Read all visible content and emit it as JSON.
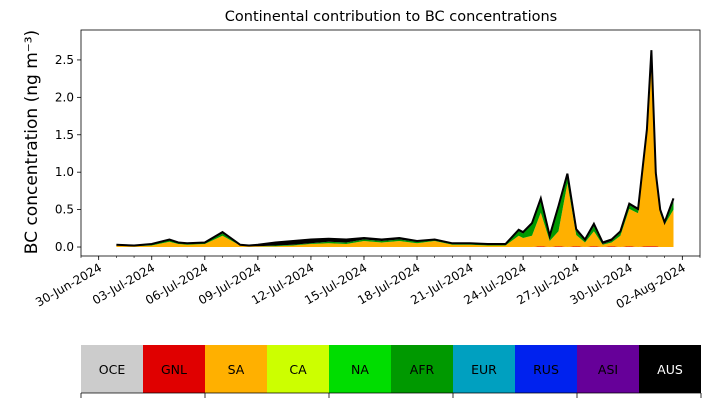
{
  "chart_data": {
    "type": "area",
    "title": "Continental contribution to BC concentrations",
    "xlabel": "",
    "ylabel": "BC concentration (ng m⁻³)",
    "x_axis": {
      "type": "date",
      "range": [
        "2024-06-29",
        "2024-08-03"
      ],
      "tick_labels": [
        "30-Jun-2024",
        "03-Jul-2024",
        "06-Jul-2024",
        "09-Jul-2024",
        "12-Jul-2024",
        "15-Jul-2024",
        "18-Jul-2024",
        "21-Jul-2024",
        "24-Jul-2024",
        "27-Jul-2024",
        "30-Jul-2024",
        "02-Aug-2024"
      ],
      "tick_dates": [
        "2024-06-30",
        "2024-07-03",
        "2024-07-06",
        "2024-07-09",
        "2024-07-12",
        "2024-07-15",
        "2024-07-18",
        "2024-07-21",
        "2024-07-24",
        "2024-07-27",
        "2024-07-30",
        "2024-08-02"
      ]
    },
    "y_axis": {
      "range": [
        -0.12,
        2.9
      ],
      "tick_values": [
        0.0,
        0.5,
        1.0,
        1.5,
        2.0,
        2.5
      ],
      "tick_labels": [
        "0.0",
        "0.5",
        "1.0",
        "1.5",
        "2.0",
        "2.5"
      ]
    },
    "grid": false,
    "legend_placement": "bottom",
    "x": [
      "2024-07-01",
      "2024-07-02",
      "2024-07-03",
      "2024-07-04",
      "2024-07-04T12:00",
      "2024-07-05",
      "2024-07-06",
      "2024-07-07",
      "2024-07-08",
      "2024-07-08T12:00",
      "2024-07-09",
      "2024-07-10",
      "2024-07-11",
      "2024-07-12",
      "2024-07-13",
      "2024-07-14",
      "2024-07-15",
      "2024-07-16",
      "2024-07-17",
      "2024-07-18",
      "2024-07-19",
      "2024-07-20",
      "2024-07-21",
      "2024-07-22",
      "2024-07-23",
      "2024-07-23T18:00",
      "2024-07-24",
      "2024-07-24T12:00",
      "2024-07-25",
      "2024-07-25T12:00",
      "2024-07-26",
      "2024-07-26T12:00",
      "2024-07-27",
      "2024-07-27T12:00",
      "2024-07-28",
      "2024-07-28T12:00",
      "2024-07-29",
      "2024-07-29T12:00",
      "2024-07-30",
      "2024-07-30T12:00",
      "2024-07-31",
      "2024-07-31T06:00",
      "2024-07-31T12:00",
      "2024-07-31T18:00",
      "2024-08-01",
      "2024-08-01T12:00"
    ],
    "series": [
      {
        "name": "OCE",
        "values": [
          0,
          0,
          0,
          0,
          0,
          0,
          0,
          0,
          0,
          0,
          0,
          0,
          0,
          0,
          0,
          0,
          0,
          0,
          0,
          0,
          0,
          0,
          0,
          0,
          0,
          0,
          0,
          0,
          0,
          0,
          0,
          0,
          0,
          0,
          0,
          0,
          0,
          0,
          0,
          0,
          0,
          0,
          0,
          0,
          0,
          0
        ]
      },
      {
        "name": "GNL",
        "values": [
          0,
          0,
          0,
          0,
          0,
          0,
          0,
          0,
          0,
          0,
          0,
          0,
          0,
          0,
          0,
          0,
          0,
          0,
          0,
          0,
          0,
          0,
          0,
          0,
          0,
          0,
          0,
          0,
          0.01,
          0,
          0.01,
          0,
          0.01,
          0,
          0.01,
          0,
          0.01,
          0,
          0.01,
          0,
          0.01,
          0.01,
          0.01,
          0,
          0,
          0
        ]
      },
      {
        "name": "SA",
        "values": [
          0.02,
          0.01,
          0.02,
          0.07,
          0.04,
          0.03,
          0.04,
          0.15,
          0.02,
          0.01,
          0.01,
          0.01,
          0.02,
          0.04,
          0.05,
          0.04,
          0.08,
          0.06,
          0.08,
          0.05,
          0.08,
          0.03,
          0.03,
          0.02,
          0.02,
          0.15,
          0.12,
          0.15,
          0.45,
          0.08,
          0.2,
          0.85,
          0.15,
          0.06,
          0.2,
          0.03,
          0.05,
          0.15,
          0.5,
          0.45,
          1.5,
          2.5,
          0.9,
          0.45,
          0.3,
          0.5
        ]
      },
      {
        "name": "CA",
        "values": [
          0,
          0,
          0,
          0,
          0,
          0,
          0,
          0,
          0,
          0,
          0,
          0,
          0,
          0,
          0,
          0,
          0,
          0,
          0,
          0,
          0,
          0,
          0,
          0,
          0,
          0,
          0,
          0,
          0,
          0,
          0,
          0,
          0,
          0,
          0,
          0,
          0,
          0,
          0,
          0,
          0,
          0,
          0,
          0,
          0,
          0
        ]
      },
      {
        "name": "NA",
        "values": [
          0,
          0,
          0,
          0,
          0,
          0,
          0,
          0,
          0,
          0,
          0,
          0,
          0,
          0,
          0,
          0,
          0,
          0,
          0,
          0,
          0,
          0,
          0,
          0,
          0,
          0,
          0,
          0,
          0,
          0,
          0,
          0,
          0,
          0,
          0,
          0,
          0,
          0,
          0,
          0,
          0,
          0,
          0,
          0,
          0,
          0
        ]
      },
      {
        "name": "AFR",
        "values": [
          0,
          0,
          0.01,
          0.02,
          0.01,
          0.01,
          0.01,
          0.03,
          0,
          0,
          0,
          0.01,
          0.01,
          0.01,
          0.02,
          0.02,
          0.02,
          0.02,
          0.02,
          0.02,
          0.01,
          0.01,
          0.01,
          0.01,
          0.01,
          0.06,
          0.06,
          0.15,
          0.15,
          0.04,
          0.3,
          0.08,
          0.05,
          0.02,
          0.07,
          0.01,
          0.02,
          0.04,
          0.05,
          0.04,
          0.04,
          0.08,
          0.05,
          0.03,
          0.02,
          0.1
        ]
      },
      {
        "name": "EUR",
        "values": [
          0,
          0,
          0,
          0,
          0,
          0,
          0,
          0,
          0,
          0,
          0,
          0,
          0,
          0,
          0,
          0,
          0,
          0,
          0,
          0,
          0,
          0,
          0,
          0,
          0,
          0,
          0,
          0,
          0,
          0,
          0,
          0,
          0,
          0,
          0,
          0,
          0,
          0,
          0,
          0,
          0,
          0,
          0,
          0,
          0,
          0
        ]
      },
      {
        "name": "RUS",
        "values": [
          0,
          0,
          0,
          0,
          0,
          0,
          0,
          0,
          0,
          0,
          0,
          0,
          0,
          0,
          0,
          0,
          0,
          0,
          0,
          0,
          0,
          0,
          0,
          0,
          0,
          0,
          0,
          0,
          0,
          0,
          0,
          0,
          0,
          0,
          0,
          0,
          0,
          0,
          0,
          0,
          0,
          0,
          0,
          0,
          0,
          0
        ]
      },
      {
        "name": "ASI",
        "values": [
          0,
          0,
          0,
          0,
          0,
          0,
          0,
          0,
          0,
          0,
          0,
          0,
          0,
          0,
          0,
          0,
          0,
          0,
          0,
          0,
          0,
          0,
          0,
          0,
          0,
          0,
          0,
          0,
          0,
          0,
          0,
          0,
          0,
          0,
          0,
          0,
          0,
          0,
          0,
          0,
          0,
          0,
          0,
          0,
          0,
          0
        ]
      },
      {
        "name": "AUS",
        "values": [
          0.01,
          0.01,
          0.01,
          0.01,
          0.01,
          0.01,
          0.01,
          0.02,
          0.01,
          0.01,
          0.02,
          0.04,
          0.05,
          0.05,
          0.04,
          0.04,
          0.02,
          0.02,
          0.02,
          0.01,
          0.01,
          0.01,
          0.01,
          0.01,
          0.01,
          0.02,
          0.02,
          0.02,
          0.04,
          0.03,
          0.04,
          0.05,
          0.03,
          0.02,
          0.03,
          0.02,
          0.02,
          0.02,
          0.02,
          0.02,
          0.02,
          0.04,
          0.03,
          0.02,
          0.01,
          0.05
        ]
      }
    ],
    "total": [
      0.03,
      0.02,
      0.04,
      0.1,
      0.06,
      0.05,
      0.06,
      0.2,
      0.03,
      0.02,
      0.03,
      0.06,
      0.08,
      0.1,
      0.11,
      0.1,
      0.12,
      0.1,
      0.12,
      0.08,
      0.1,
      0.05,
      0.05,
      0.04,
      0.04,
      0.23,
      0.2,
      0.32,
      0.65,
      0.15,
      0.55,
      0.98,
      0.24,
      0.1,
      0.31,
      0.06,
      0.1,
      0.21,
      0.58,
      0.51,
      1.57,
      2.63,
      0.99,
      0.5,
      0.33,
      0.65
    ]
  },
  "legend": {
    "items": [
      {
        "label": "OCE",
        "color": "#cccccc",
        "text_color": "#000000"
      },
      {
        "label": "GNL",
        "color": "#e00000",
        "text_color": "#000000"
      },
      {
        "label": "SA",
        "color": "#ffb000",
        "text_color": "#000000"
      },
      {
        "label": "CA",
        "color": "#ccff00",
        "text_color": "#000000"
      },
      {
        "label": "NA",
        "color": "#00dd00",
        "text_color": "#000000"
      },
      {
        "label": "AFR",
        "color": "#009900",
        "text_color": "#000000"
      },
      {
        "label": "EUR",
        "color": "#00a0c0",
        "text_color": "#000000"
      },
      {
        "label": "RUS",
        "color": "#0022ee",
        "text_color": "#000000"
      },
      {
        "label": "ASI",
        "color": "#660099",
        "text_color": "#000000"
      },
      {
        "label": "AUS",
        "color": "#000000",
        "text_color": "#ffffff"
      }
    ]
  }
}
